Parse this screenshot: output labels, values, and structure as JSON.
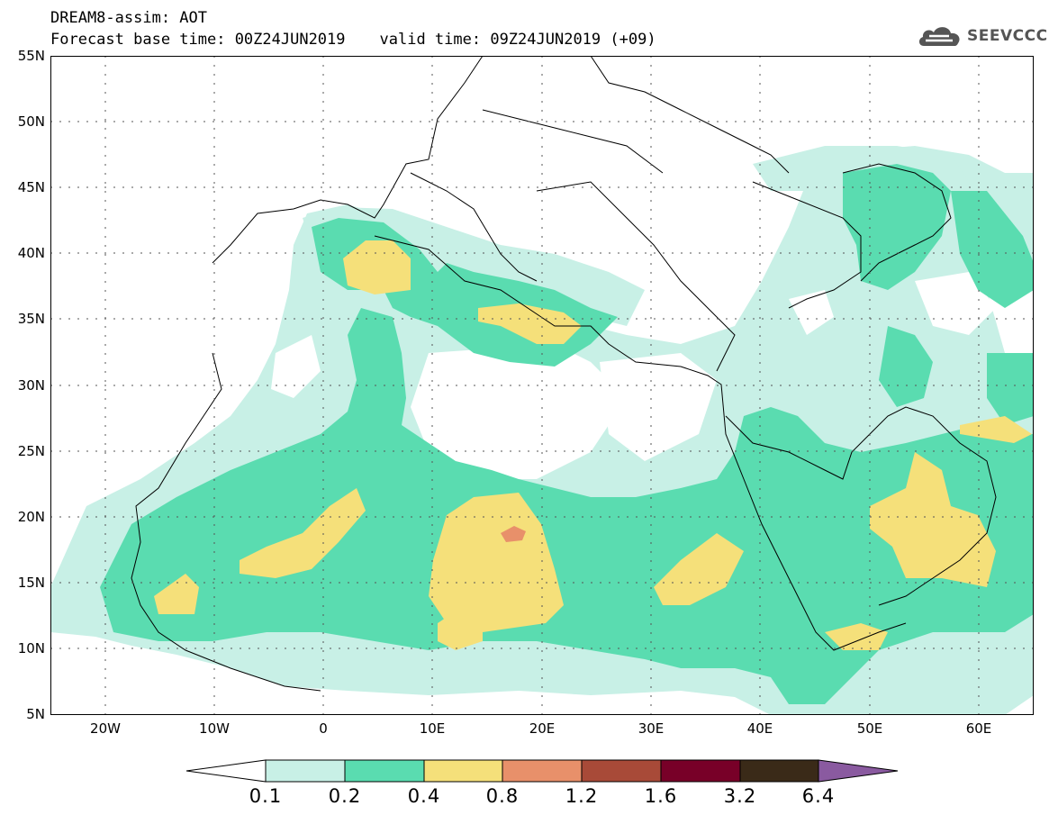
{
  "header": {
    "title_line1": "DREAM8-assim: AOT",
    "base_time": "Forecast base time: 00Z24JUN2019",
    "valid_time": "valid time: 09Z24JUN2019 (+09)"
  },
  "logo": {
    "text": "SEEVCCC",
    "icon": "cloud-icon",
    "color": "#555555"
  },
  "map": {
    "projection": "lat-lon",
    "lon_range": [
      -25,
      65
    ],
    "lat_range": [
      5,
      55
    ],
    "grid": "dotted",
    "lat_labels": [
      "55N",
      "50N",
      "45N",
      "40N",
      "35N",
      "30N",
      "25N",
      "20N",
      "15N",
      "10N",
      "5N"
    ],
    "lon_labels": [
      "20W",
      "10W",
      "0",
      "10E",
      "20E",
      "30E",
      "40E",
      "50E",
      "60E"
    ]
  },
  "colorbar": {
    "levels": [
      "0.1",
      "0.2",
      "0.4",
      "0.8",
      "1.2",
      "1.6",
      "3.2",
      "6.4"
    ],
    "colors": [
      "#c8f0e6",
      "#5adcb0",
      "#f5e07a",
      "#e8906a",
      "#a84a38",
      "#780028",
      "#3a2a18",
      "#8a5aa0"
    ]
  }
}
